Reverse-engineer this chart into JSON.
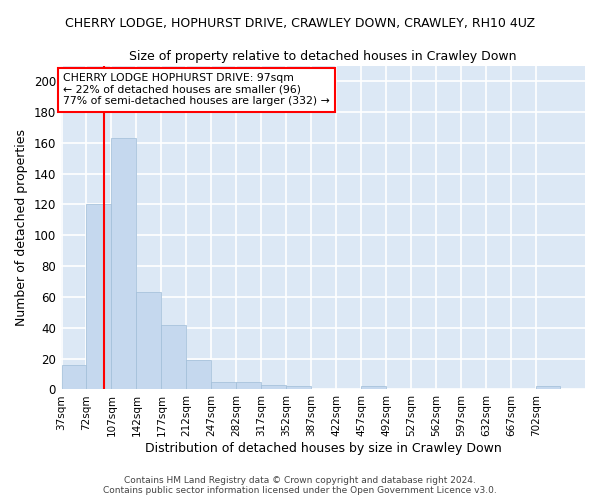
{
  "title": "CHERRY LODGE, HOPHURST DRIVE, CRAWLEY DOWN, CRAWLEY, RH10 4UZ",
  "subtitle": "Size of property relative to detached houses in Crawley Down",
  "xlabel": "Distribution of detached houses by size in Crawley Down",
  "ylabel": "Number of detached properties",
  "bar_color": "#c5d8ee",
  "bar_edge_color": "#a0bdd8",
  "background_color": "#dce8f5",
  "grid_color": "#ffffff",
  "fig_background": "#ffffff",
  "bins": [
    37,
    72,
    107,
    142,
    177,
    212,
    247,
    282,
    317,
    352,
    387,
    422,
    457,
    492,
    527,
    562,
    597,
    632,
    667,
    702,
    737
  ],
  "values": [
    16,
    120,
    163,
    63,
    42,
    19,
    5,
    5,
    3,
    2,
    0,
    0,
    2,
    0,
    0,
    0,
    0,
    0,
    0,
    2
  ],
  "ylim": [
    0,
    210
  ],
  "yticks": [
    0,
    20,
    40,
    60,
    80,
    100,
    120,
    140,
    160,
    180,
    200
  ],
  "red_line_x": 97,
  "annotation_title": "CHERRY LODGE HOPHURST DRIVE: 97sqm",
  "annotation_line1": "← 22% of detached houses are smaller (96)",
  "annotation_line2": "77% of semi-detached houses are larger (332) →",
  "footer_line1": "Contains HM Land Registry data © Crown copyright and database right 2024.",
  "footer_line2": "Contains public sector information licensed under the Open Government Licence v3.0."
}
